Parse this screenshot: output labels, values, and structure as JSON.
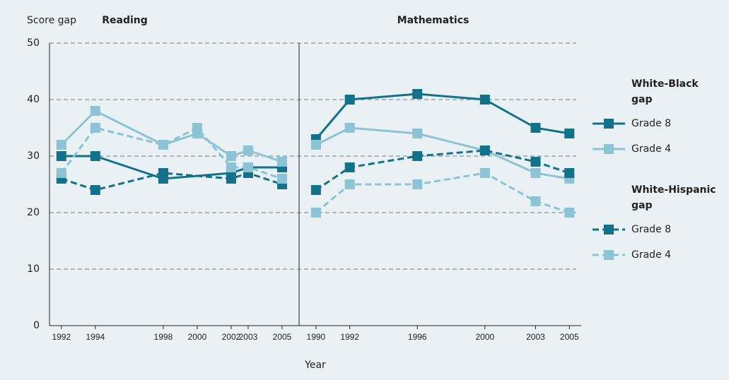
{
  "chart_data": [
    {
      "type": "line",
      "title": "Reading",
      "ylabel": "Score gap",
      "xlabel": "Year",
      "xlim": [
        1991.3,
        2006
      ],
      "xticks": [
        1992,
        1994,
        1998,
        2000,
        2002,
        2003,
        2005
      ],
      "ylim": [
        0,
        50
      ],
      "yticks": [
        0,
        10,
        20,
        30,
        40,
        50
      ],
      "grid": true,
      "series": [
        {
          "group": "White-Black gap",
          "name": "Grade 8",
          "color": "#13718a",
          "dashed": false,
          "x": [
            1992,
            1994,
            1998,
            2002,
            2003,
            2005
          ],
          "values": [
            30,
            30,
            26,
            27,
            28,
            28
          ]
        },
        {
          "group": "White-Black gap",
          "name": "Grade 4",
          "color": "#8cc3d5",
          "dashed": false,
          "x": [
            1992,
            1994,
            1998,
            2000,
            2002,
            2003,
            2005
          ],
          "values": [
            32,
            38,
            32,
            34,
            30,
            31,
            29
          ]
        },
        {
          "group": "White-Hispanic gap",
          "name": "Grade 8",
          "color": "#13718a",
          "dashed": true,
          "x": [
            1992,
            1994,
            1998,
            2002,
            2003,
            2005
          ],
          "values": [
            26,
            24,
            27,
            26,
            27,
            25
          ]
        },
        {
          "group": "White-Hispanic gap",
          "name": "Grade 4",
          "color": "#8cc3d5",
          "dashed": true,
          "x": [
            1992,
            1994,
            1998,
            2000,
            2002,
            2003,
            2005
          ],
          "values": [
            27,
            35,
            32,
            35,
            28,
            28,
            26
          ]
        }
      ]
    },
    {
      "type": "line",
      "title": "Mathematics",
      "xlim": [
        1989,
        2005.7
      ],
      "xticks": [
        1990,
        1992,
        1996,
        2000,
        2003,
        2005
      ],
      "ylim": [
        0,
        50
      ],
      "series": [
        {
          "group": "White-Black gap",
          "name": "Grade 8",
          "color": "#13718a",
          "dashed": false,
          "x": [
            1990,
            1992,
            1996,
            2000,
            2003,
            2005
          ],
          "values": [
            33,
            40,
            41,
            40,
            35,
            34
          ]
        },
        {
          "group": "White-Black gap",
          "name": "Grade 4",
          "color": "#8cc3d5",
          "dashed": false,
          "x": [
            1990,
            1992,
            1996,
            2000,
            2003,
            2005
          ],
          "values": [
            32,
            35,
            34,
            31,
            27,
            26
          ]
        },
        {
          "group": "White-Hispanic gap",
          "name": "Grade 8",
          "color": "#13718a",
          "dashed": true,
          "x": [
            1990,
            1992,
            1996,
            2000,
            2003,
            2005
          ],
          "values": [
            24,
            28,
            30,
            31,
            29,
            27
          ]
        },
        {
          "group": "White-Hispanic gap",
          "name": "Grade 4",
          "color": "#8cc3d5",
          "dashed": true,
          "x": [
            1990,
            1992,
            1996,
            2000,
            2003,
            2005
          ],
          "values": [
            20,
            25,
            25,
            27,
            22,
            20
          ]
        }
      ]
    }
  ]
}
